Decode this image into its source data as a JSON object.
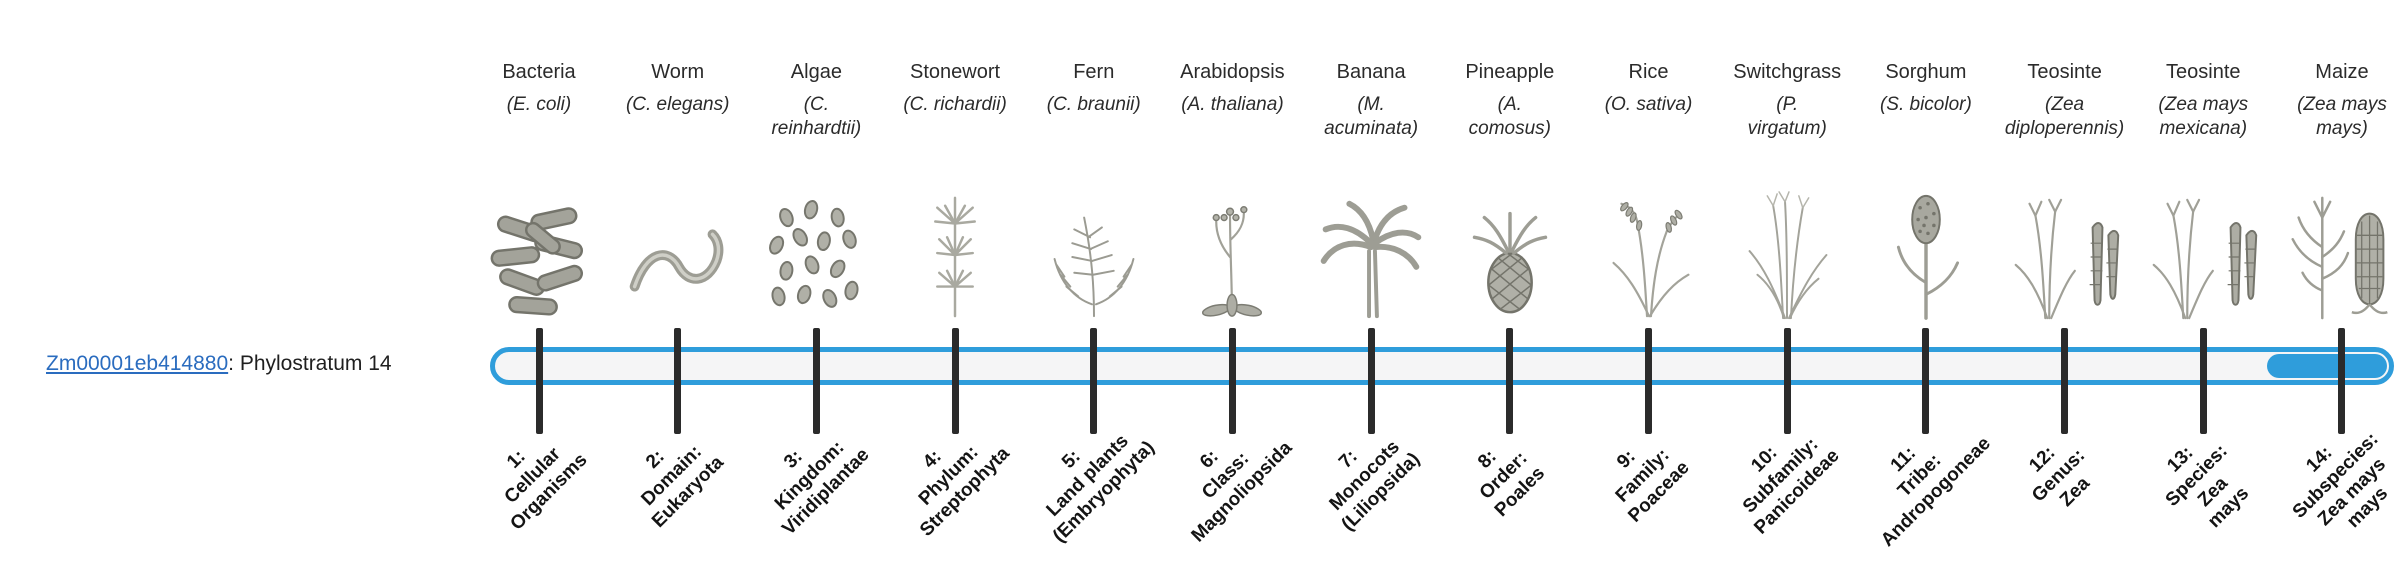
{
  "gene": {
    "id": "Zm00001eb414880",
    "suffix": ": Phylostratum 14",
    "phylostratum": 14
  },
  "track": {
    "strata_count": 14,
    "highlighted_stratum": 14
  },
  "colors": {
    "track_blue": "#2f9ddb",
    "track_fill": "#f5f5f6",
    "tick_color": "#2b2b2b",
    "link_blue": "#2a6cbf",
    "text_dark": "#1f1f1f"
  },
  "taxa": [
    {
      "name": "Bacteria",
      "sci": "(E. coli)",
      "icon": "bacteria",
      "stratum": "1:\nCellular\nOrganisms"
    },
    {
      "name": "Worm",
      "sci": "(C. elegans)",
      "icon": "worm",
      "stratum": "2:\nDomain:\nEukaryota"
    },
    {
      "name": "Algae",
      "sci": "(C.\nreinhardtii)",
      "icon": "algae",
      "stratum": "3:\nKingdom:\nViridiplantae"
    },
    {
      "name": "Stonewort",
      "sci": "(C. richardii)",
      "icon": "stonewort",
      "stratum": "4:\nPhylum:\nStreptophyta"
    },
    {
      "name": "Fern",
      "sci": "(C. braunii)",
      "icon": "fern",
      "stratum": "5:\nLand plants\n(Embryophyta)"
    },
    {
      "name": "Arabidopsis",
      "sci": "(A. thaliana)",
      "icon": "arabidopsis",
      "stratum": "6:\nClass:\nMagnoliopsida"
    },
    {
      "name": "Banana",
      "sci": "(M.\nacuminata)",
      "icon": "banana",
      "stratum": "7:\nMonocots\n(Liliopsida)"
    },
    {
      "name": "Pineapple",
      "sci": "(A.\ncomosus)",
      "icon": "pineapple",
      "stratum": "8:\nOrder:\nPoales"
    },
    {
      "name": "Rice",
      "sci": "(O. sativa)",
      "icon": "rice",
      "stratum": "9:\nFamily:\nPoaceae"
    },
    {
      "name": "Switchgrass",
      "sci": "(P.\nvirgatum)",
      "icon": "switchgrass",
      "stratum": "10:\nSubfamily:\nPanicoideae"
    },
    {
      "name": "Sorghum",
      "sci": "(S. bicolor)",
      "icon": "sorghum",
      "stratum": "11:\nTribe:\nAndropogoneae"
    },
    {
      "name": "Teosinte",
      "sci": "(Zea\ndiploperennis)",
      "icon": "teosinte",
      "stratum": "12:\nGenus:\nZea"
    },
    {
      "name": "Teosinte",
      "sci": "(Zea mays\nmexicana)",
      "icon": "teosinte",
      "stratum": "13:\nSpecies:\nZea\nmays"
    },
    {
      "name": "Maize",
      "sci": "(Zea mays\nmays)",
      "icon": "maize",
      "stratum": "14:\nSubspecies:\nZea mays\nmays"
    }
  ]
}
